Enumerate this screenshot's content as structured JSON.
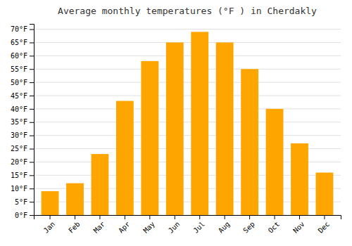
{
  "chart_data": {
    "type": "bar",
    "title": "Average monthly temperatures (°F ) in Cherdakly",
    "categories": [
      "Jan",
      "Feb",
      "Mar",
      "Apr",
      "May",
      "Jun",
      "Jul",
      "Aug",
      "Sep",
      "Oct",
      "Nov",
      "Dec"
    ],
    "values": [
      9,
      12,
      23,
      43,
      58,
      65,
      69,
      65,
      55,
      40,
      27,
      16
    ],
    "color": "#FFA500",
    "ylim": [
      0,
      72
    ],
    "yticks": [
      {
        "value": 0,
        "label": "0°F"
      },
      {
        "value": 5,
        "label": "5°F"
      },
      {
        "value": 10,
        "label": "10°F"
      },
      {
        "value": 15,
        "label": "15°F"
      },
      {
        "value": 20,
        "label": "20°F"
      },
      {
        "value": 25,
        "label": "25°F"
      },
      {
        "value": 30,
        "label": "30°F"
      },
      {
        "value": 35,
        "label": "35°F"
      },
      {
        "value": 40,
        "label": "40°F"
      },
      {
        "value": 45,
        "label": "45°F"
      },
      {
        "value": 50,
        "label": "50°F"
      },
      {
        "value": 55,
        "label": "55°F"
      },
      {
        "value": 60,
        "label": "60°F"
      },
      {
        "value": 65,
        "label": "65°F"
      },
      {
        "value": 70,
        "label": "70°F"
      }
    ],
    "grid": true
  }
}
